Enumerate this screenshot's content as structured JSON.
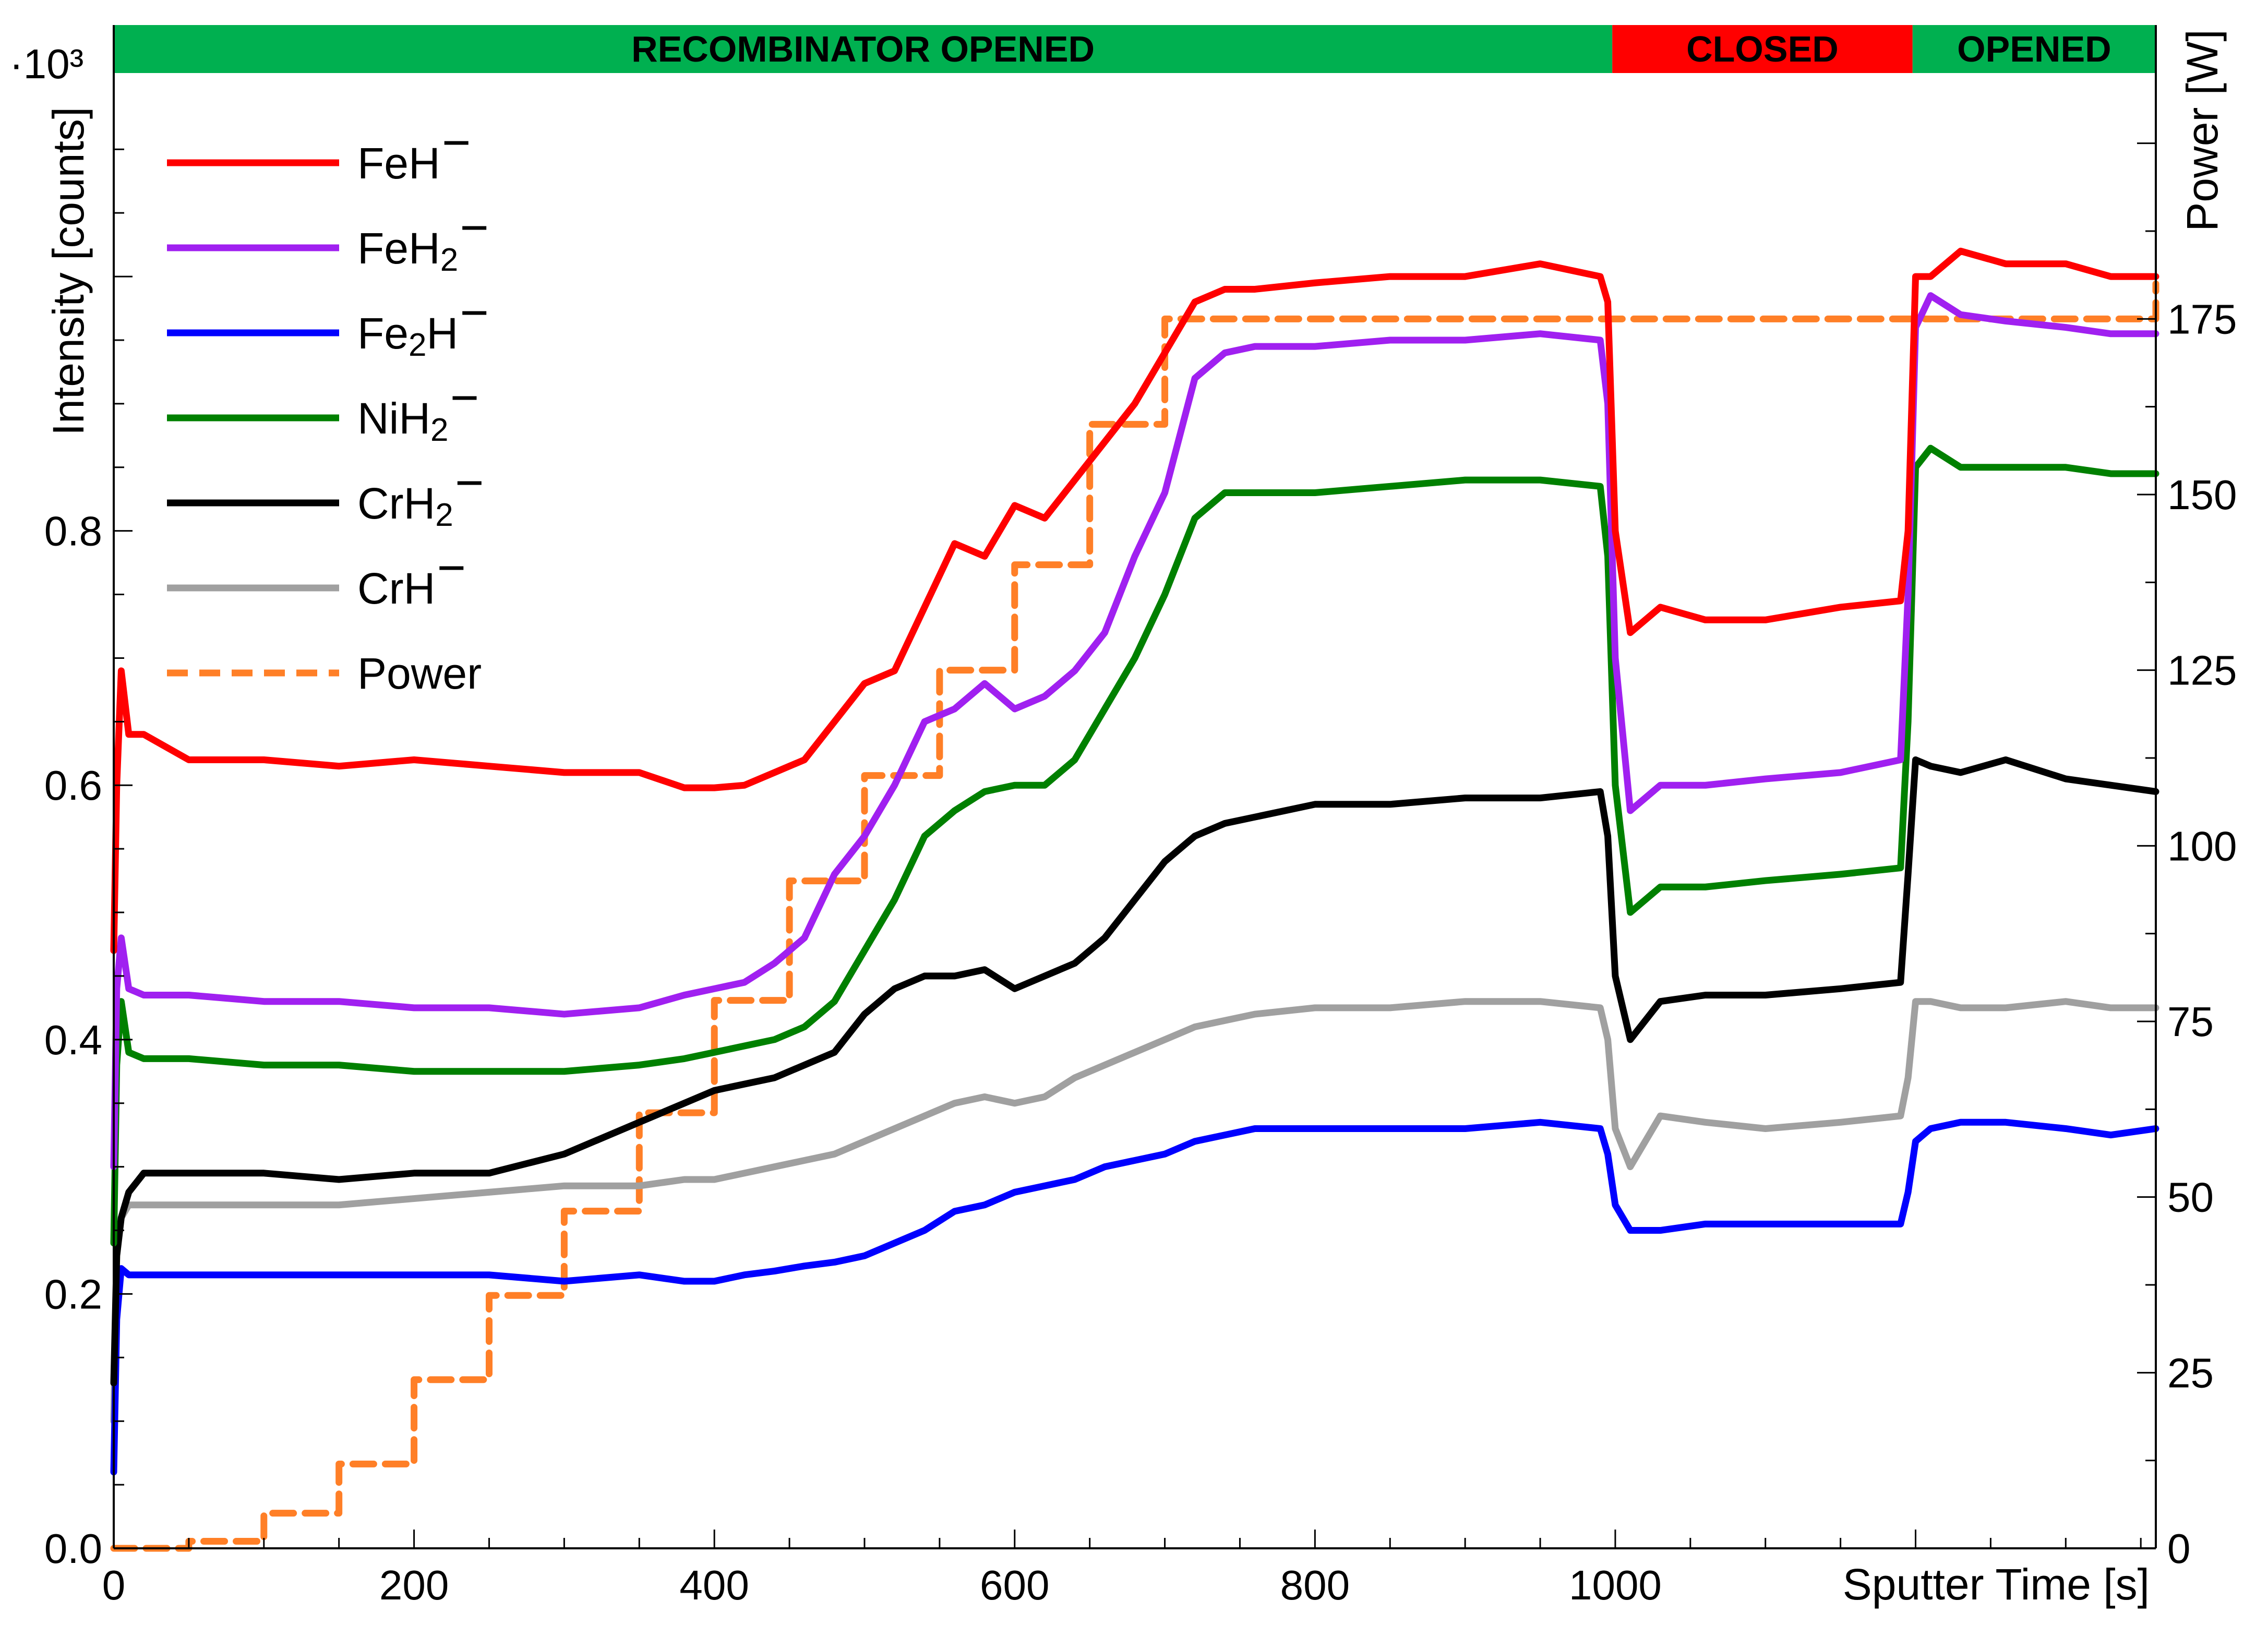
{
  "chart_data": {
    "type": "line",
    "xlabel": "Sputter Time [s]",
    "ylabel": "Intensity [counts]",
    "y_multiplier": "·10³",
    "y2label": "Power [W]",
    "xlim": [
      0,
      1360
    ],
    "ylim": [
      0.0,
      1.16
    ],
    "y2lim": [
      0,
      210
    ],
    "x_ticks": [
      0,
      200,
      400,
      600,
      800,
      1000
    ],
    "y_ticks": [
      0.0,
      0.2,
      0.4,
      0.6,
      0.8
    ],
    "y2_ticks": [
      0,
      25,
      50,
      75,
      100,
      125,
      150,
      175
    ],
    "x_tick_labels": [
      "0",
      "200",
      "400",
      "600",
      "800",
      "1000"
    ],
    "y_tick_labels": [
      "0.0",
      "0.2",
      "0.4",
      "0.6",
      "0.8"
    ],
    "y2_tick_labels": [
      "0",
      "25",
      "50",
      "75",
      "100",
      "125",
      "150",
      "175"
    ],
    "grid": false,
    "legend_position": "top-left",
    "state_bands": [
      {
        "label": "RECOMBINATOR OPENED",
        "from": 0,
        "to": 998,
        "color": "#00b050"
      },
      {
        "label": "CLOSED",
        "from": 998,
        "to": 1198,
        "color": "#ff0000"
      },
      {
        "label": "OPENED",
        "from": 1198,
        "to": 1360,
        "color": "#00b050"
      }
    ],
    "series": [
      {
        "name": "FeH⁻",
        "legend_text": "FeH",
        "legend_sub": "",
        "legend_after": "",
        "color": "#ff0000",
        "axis": "left",
        "x": [
          0,
          2,
          5,
          10,
          20,
          50,
          100,
          150,
          200,
          250,
          300,
          350,
          380,
          400,
          420,
          440,
          460,
          480,
          500,
          520,
          540,
          560,
          580,
          600,
          620,
          640,
          660,
          680,
          700,
          720,
          740,
          760,
          800,
          850,
          900,
          950,
          990,
          995,
          1000,
          1010,
          1030,
          1060,
          1100,
          1150,
          1190,
          1195,
          1200,
          1210,
          1230,
          1260,
          1300,
          1330,
          1360
        ],
        "y": [
          0.47,
          0.6,
          0.69,
          0.64,
          0.64,
          0.62,
          0.62,
          0.615,
          0.62,
          0.615,
          0.61,
          0.61,
          0.598,
          0.598,
          0.6,
          0.61,
          0.62,
          0.65,
          0.68,
          0.69,
          0.74,
          0.79,
          0.78,
          0.82,
          0.81,
          0.84,
          0.87,
          0.9,
          0.94,
          0.98,
          0.99,
          0.99,
          0.995,
          1.0,
          1.0,
          1.01,
          1.0,
          0.98,
          0.8,
          0.72,
          0.74,
          0.73,
          0.73,
          0.74,
          0.745,
          0.8,
          1.0,
          1.0,
          1.02,
          1.01,
          1.01,
          1.0,
          1.0
        ]
      },
      {
        "name": "FeH₂⁻",
        "legend_text": "FeH",
        "legend_sub": "2",
        "legend_after": "",
        "color": "#a020f0",
        "axis": "left",
        "x": [
          0,
          2,
          5,
          10,
          20,
          50,
          100,
          150,
          200,
          250,
          300,
          350,
          380,
          400,
          420,
          440,
          460,
          480,
          500,
          520,
          540,
          560,
          580,
          600,
          620,
          640,
          660,
          680,
          700,
          720,
          740,
          760,
          800,
          850,
          900,
          950,
          990,
          995,
          1000,
          1010,
          1030,
          1060,
          1100,
          1150,
          1190,
          1195,
          1200,
          1210,
          1230,
          1260,
          1300,
          1330,
          1360
        ],
        "y": [
          0.3,
          0.44,
          0.48,
          0.44,
          0.435,
          0.435,
          0.43,
          0.43,
          0.425,
          0.425,
          0.42,
          0.425,
          0.435,
          0.44,
          0.445,
          0.46,
          0.48,
          0.53,
          0.56,
          0.6,
          0.65,
          0.66,
          0.68,
          0.66,
          0.67,
          0.69,
          0.72,
          0.78,
          0.83,
          0.92,
          0.94,
          0.945,
          0.945,
          0.95,
          0.95,
          0.955,
          0.95,
          0.9,
          0.7,
          0.58,
          0.6,
          0.6,
          0.605,
          0.61,
          0.62,
          0.75,
          0.96,
          0.985,
          0.97,
          0.965,
          0.96,
          0.955,
          0.955
        ]
      },
      {
        "name": "Fe₂H⁻",
        "legend_text": "Fe",
        "legend_sub": "2",
        "legend_after": "H",
        "color": "#0000ff",
        "axis": "left",
        "x": [
          0,
          2,
          5,
          10,
          20,
          50,
          100,
          150,
          200,
          250,
          300,
          350,
          380,
          400,
          420,
          440,
          460,
          480,
          500,
          520,
          540,
          560,
          580,
          600,
          620,
          640,
          660,
          680,
          700,
          720,
          740,
          760,
          800,
          850,
          900,
          950,
          990,
          995,
          1000,
          1010,
          1030,
          1060,
          1100,
          1150,
          1190,
          1195,
          1200,
          1210,
          1230,
          1260,
          1300,
          1330,
          1360
        ],
        "y": [
          0.06,
          0.18,
          0.22,
          0.215,
          0.215,
          0.215,
          0.215,
          0.215,
          0.215,
          0.215,
          0.21,
          0.215,
          0.21,
          0.21,
          0.215,
          0.218,
          0.222,
          0.225,
          0.23,
          0.24,
          0.25,
          0.265,
          0.27,
          0.28,
          0.285,
          0.29,
          0.3,
          0.305,
          0.31,
          0.32,
          0.325,
          0.33,
          0.33,
          0.33,
          0.33,
          0.335,
          0.33,
          0.31,
          0.27,
          0.25,
          0.25,
          0.255,
          0.255,
          0.255,
          0.255,
          0.28,
          0.32,
          0.33,
          0.335,
          0.335,
          0.33,
          0.325,
          0.33
        ]
      },
      {
        "name": "NiH₂⁻",
        "legend_text": "NiH",
        "legend_sub": "2",
        "legend_after": "",
        "color": "#008000",
        "axis": "left",
        "x": [
          0,
          2,
          5,
          10,
          20,
          50,
          100,
          150,
          200,
          250,
          300,
          350,
          380,
          400,
          420,
          440,
          460,
          480,
          500,
          520,
          540,
          560,
          580,
          600,
          620,
          640,
          660,
          680,
          700,
          720,
          740,
          760,
          800,
          850,
          900,
          950,
          990,
          995,
          1000,
          1010,
          1030,
          1060,
          1100,
          1150,
          1190,
          1195,
          1200,
          1210,
          1230,
          1260,
          1300,
          1330,
          1360
        ],
        "y": [
          0.24,
          0.38,
          0.43,
          0.39,
          0.385,
          0.385,
          0.38,
          0.38,
          0.375,
          0.375,
          0.375,
          0.38,
          0.385,
          0.39,
          0.395,
          0.4,
          0.41,
          0.43,
          0.47,
          0.51,
          0.56,
          0.58,
          0.595,
          0.6,
          0.6,
          0.62,
          0.66,
          0.7,
          0.75,
          0.81,
          0.83,
          0.83,
          0.83,
          0.835,
          0.84,
          0.84,
          0.835,
          0.78,
          0.6,
          0.5,
          0.52,
          0.52,
          0.525,
          0.53,
          0.535,
          0.65,
          0.85,
          0.865,
          0.85,
          0.85,
          0.85,
          0.845,
          0.845
        ]
      },
      {
        "name": "CrH₂⁻",
        "legend_text": "CrH",
        "legend_sub": "2",
        "legend_after": "",
        "color": "#000000",
        "axis": "left",
        "x": [
          0,
          2,
          5,
          10,
          20,
          50,
          100,
          150,
          200,
          250,
          300,
          350,
          380,
          400,
          420,
          440,
          460,
          480,
          500,
          520,
          540,
          560,
          580,
          600,
          620,
          640,
          660,
          680,
          700,
          720,
          740,
          760,
          800,
          850,
          900,
          950,
          990,
          995,
          1000,
          1010,
          1030,
          1060,
          1100,
          1150,
          1190,
          1195,
          1200,
          1210,
          1230,
          1260,
          1300,
          1330,
          1360
        ],
        "y": [
          0.13,
          0.23,
          0.26,
          0.28,
          0.295,
          0.295,
          0.295,
          0.29,
          0.295,
          0.295,
          0.31,
          0.335,
          0.35,
          0.36,
          0.365,
          0.37,
          0.38,
          0.39,
          0.42,
          0.44,
          0.45,
          0.45,
          0.455,
          0.44,
          0.45,
          0.46,
          0.48,
          0.51,
          0.54,
          0.56,
          0.57,
          0.575,
          0.585,
          0.585,
          0.59,
          0.59,
          0.595,
          0.56,
          0.45,
          0.4,
          0.43,
          0.435,
          0.435,
          0.44,
          0.445,
          0.53,
          0.62,
          0.615,
          0.61,
          0.62,
          0.605,
          0.6,
          0.595
        ]
      },
      {
        "name": "CrH⁻",
        "legend_text": "CrH",
        "legend_sub": "",
        "legend_after": "",
        "color": "#a0a0a0",
        "axis": "left",
        "x": [
          0,
          2,
          5,
          10,
          20,
          50,
          100,
          150,
          200,
          250,
          300,
          350,
          380,
          400,
          420,
          440,
          460,
          480,
          500,
          520,
          540,
          560,
          580,
          600,
          620,
          640,
          660,
          680,
          700,
          720,
          740,
          760,
          800,
          850,
          900,
          950,
          990,
          995,
          1000,
          1010,
          1030,
          1060,
          1100,
          1150,
          1190,
          1195,
          1200,
          1210,
          1230,
          1260,
          1300,
          1330,
          1360
        ],
        "y": [
          0.1,
          0.23,
          0.26,
          0.27,
          0.27,
          0.27,
          0.27,
          0.27,
          0.275,
          0.28,
          0.285,
          0.285,
          0.29,
          0.29,
          0.295,
          0.3,
          0.305,
          0.31,
          0.32,
          0.33,
          0.34,
          0.35,
          0.355,
          0.35,
          0.355,
          0.37,
          0.38,
          0.39,
          0.4,
          0.41,
          0.415,
          0.42,
          0.425,
          0.425,
          0.43,
          0.43,
          0.425,
          0.4,
          0.33,
          0.3,
          0.34,
          0.335,
          0.33,
          0.335,
          0.34,
          0.37,
          0.43,
          0.43,
          0.425,
          0.425,
          0.43,
          0.425,
          0.425
        ]
      },
      {
        "name": "Power",
        "legend_text": "Power",
        "legend_sub": "",
        "legend_after": "",
        "color": "#ff7f27",
        "axis": "right",
        "dashed": true,
        "step": true,
        "x": [
          0,
          50,
          100,
          150,
          200,
          250,
          300,
          350,
          400,
          450,
          500,
          550,
          600,
          650,
          700,
          1360
        ],
        "y": [
          0,
          1,
          5,
          12,
          24,
          36,
          48,
          62,
          78,
          95,
          110,
          125,
          140,
          160,
          175,
          180
        ]
      }
    ]
  }
}
